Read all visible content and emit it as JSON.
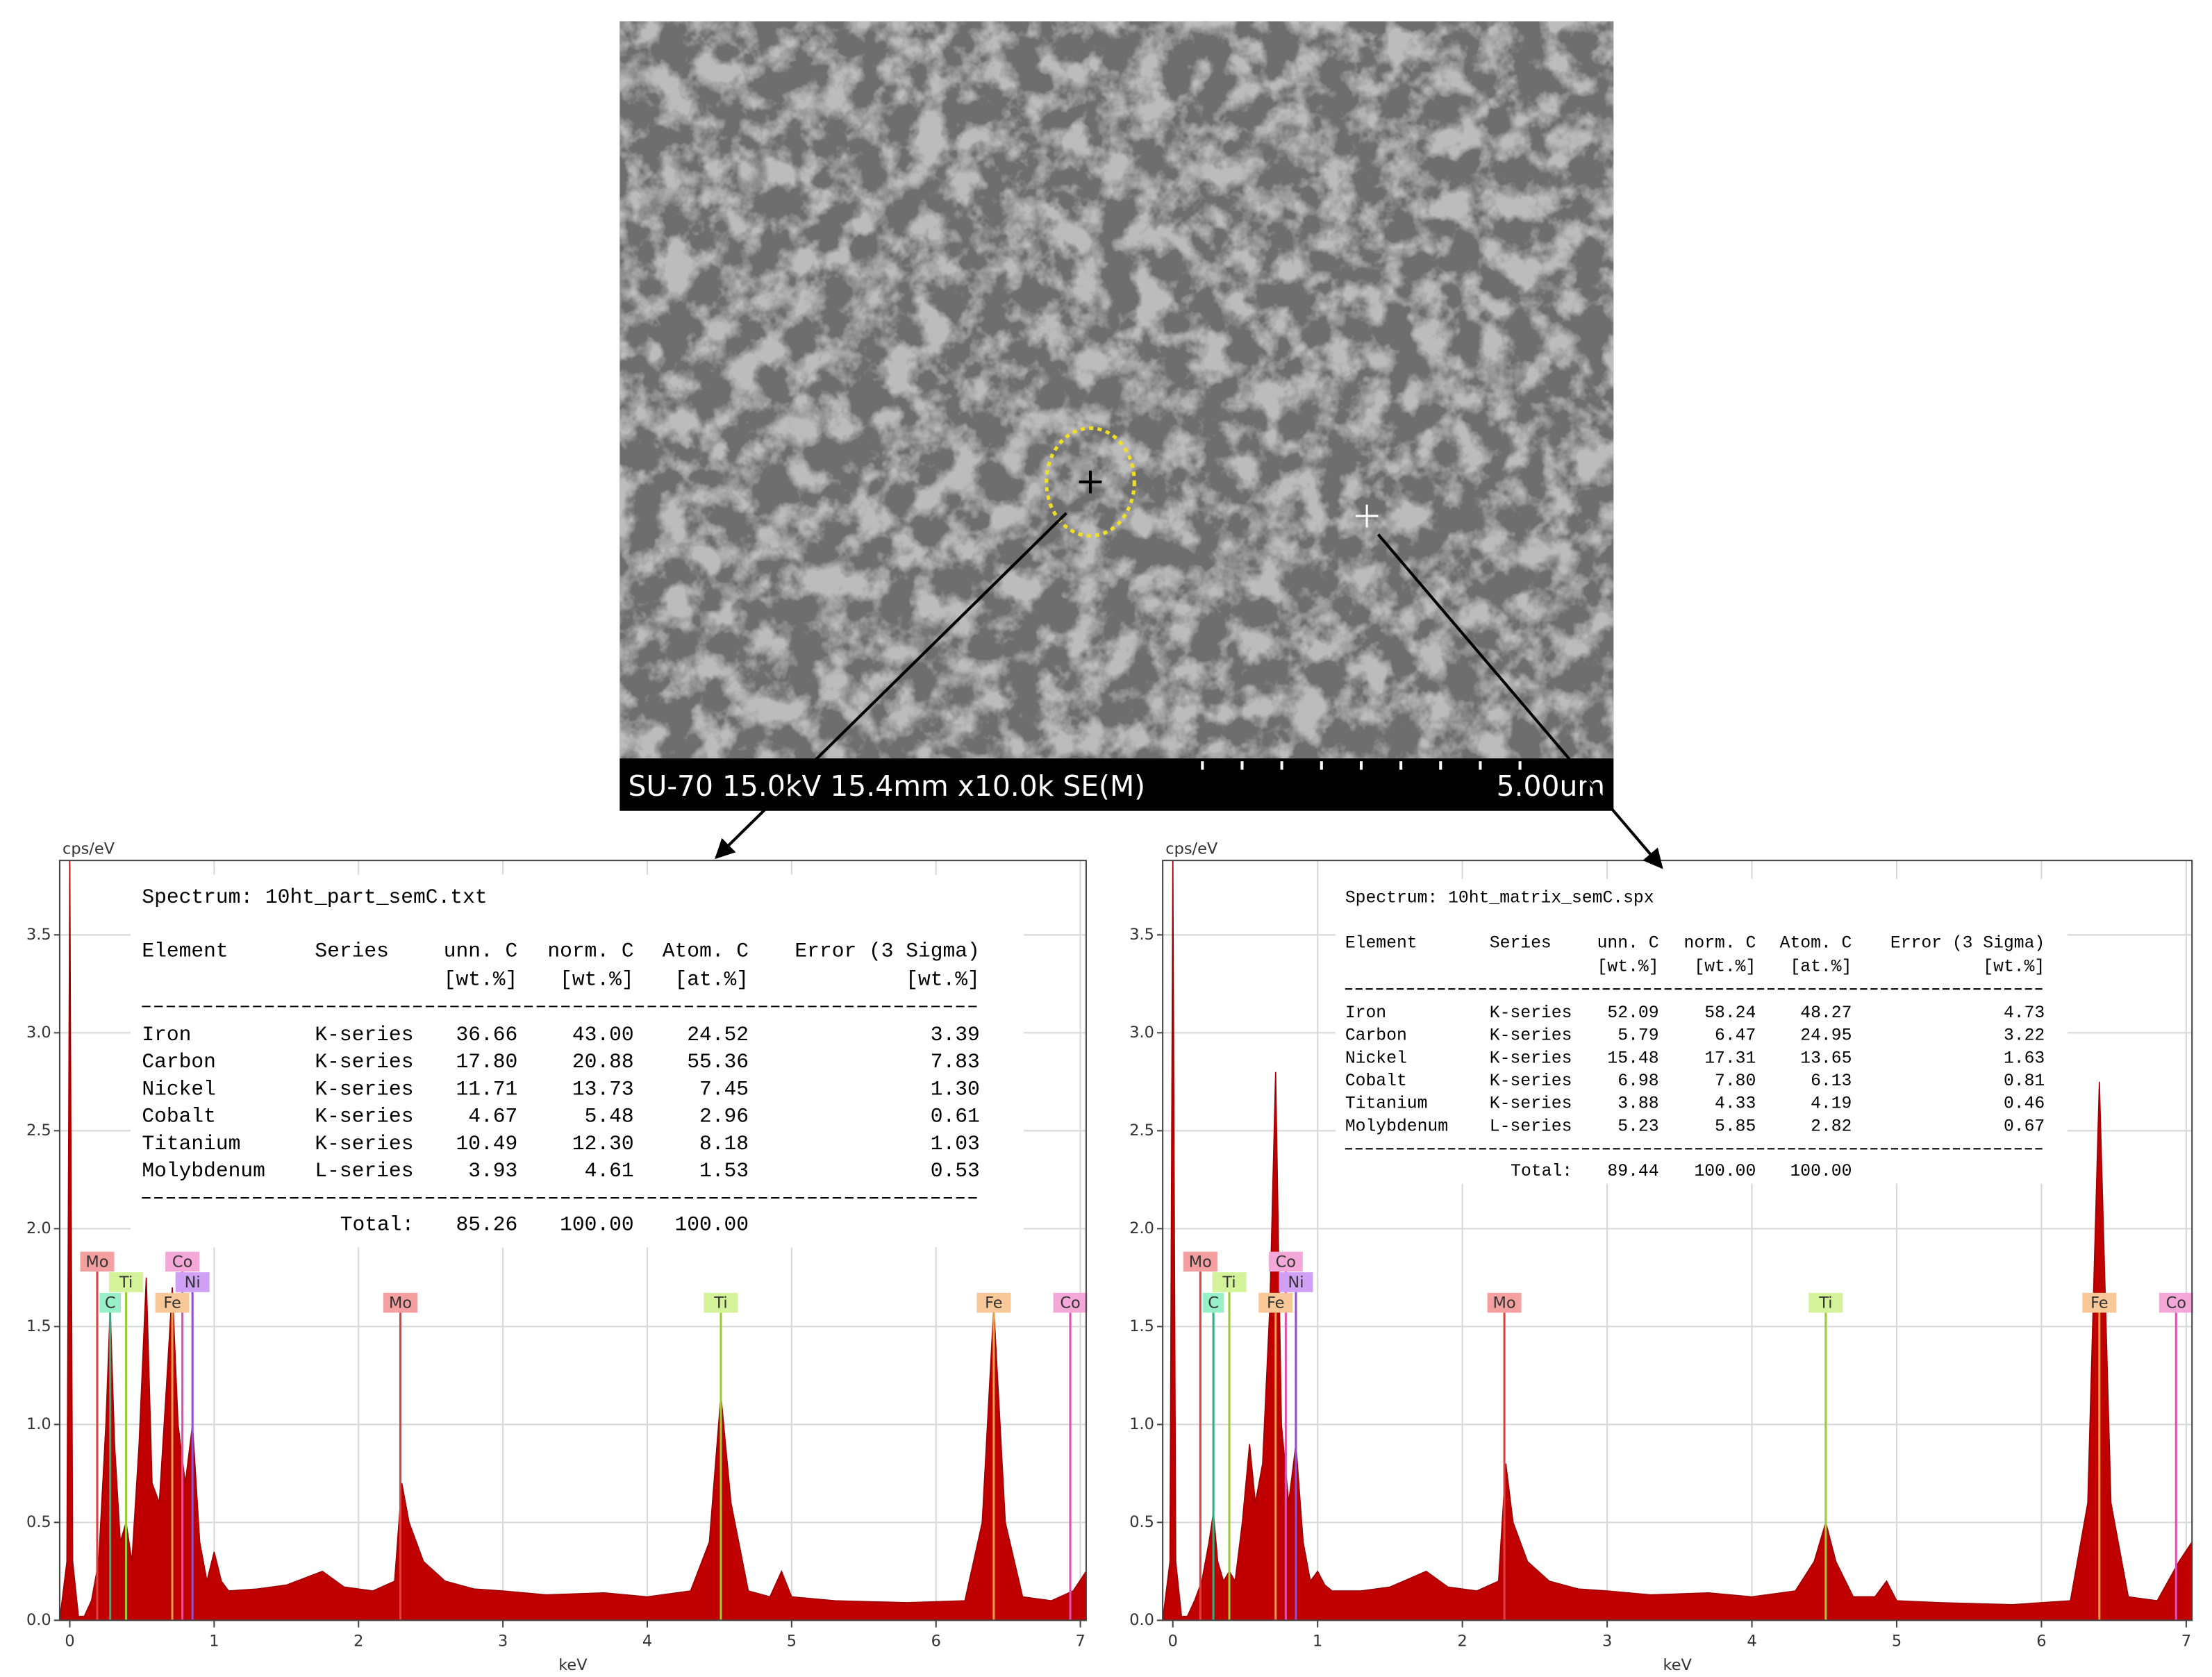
{
  "image": {
    "caption": "SU-70 15.0kV 15.4mm x10.0k SE(M)",
    "scale_bar": "5.00um"
  },
  "chart_data": [
    {
      "type": "area",
      "ylabel": "cps/eV",
      "xlabel": "keV",
      "color": "#c00000",
      "xlim": [
        -0.07,
        7.04
      ],
      "ylim": [
        0,
        3.88
      ],
      "xticks": [
        0,
        1,
        2,
        3,
        4,
        5,
        6,
        7
      ],
      "yticks": [
        {
          "value": 0,
          "label": "0.0"
        },
        0.5,
        {
          "value": 1,
          "label": "1.0"
        },
        1.5,
        {
          "value": 2,
          "label": "2.0"
        },
        2.5,
        {
          "value": 3,
          "label": "3.0"
        },
        3.5
      ],
      "grid": true,
      "x": [
        -0.07,
        -0.02,
        0,
        0.02,
        0.06,
        0.1,
        0.15,
        0.2,
        0.25,
        0.28,
        0.31,
        0.35,
        0.39,
        0.43,
        0.48,
        0.53,
        0.57,
        0.62,
        0.67,
        0.71,
        0.75,
        0.8,
        0.85,
        0.9,
        0.95,
        1.0,
        1.05,
        1.1,
        1.3,
        1.5,
        1.75,
        1.9,
        2.1,
        2.25,
        2.3,
        2.35,
        2.45,
        2.6,
        2.8,
        3.0,
        3.3,
        3.7,
        4.0,
        4.3,
        4.43,
        4.51,
        4.58,
        4.7,
        4.85,
        4.93,
        5.0,
        5.3,
        5.8,
        6.2,
        6.32,
        6.4,
        6.48,
        6.6,
        6.8,
        6.95,
        7.04
      ],
      "values": [
        0,
        0.3,
        3.88,
        0.3,
        0.02,
        0.02,
        0.1,
        0.3,
        1.0,
        1.6,
        0.9,
        0.4,
        0.5,
        0.3,
        0.9,
        1.75,
        0.7,
        0.6,
        1.2,
        1.7,
        1.0,
        0.7,
        1.0,
        0.4,
        0.2,
        0.35,
        0.2,
        0.15,
        0.16,
        0.18,
        0.25,
        0.17,
        0.15,
        0.2,
        0.7,
        0.5,
        0.3,
        0.2,
        0.16,
        0.15,
        0.13,
        0.14,
        0.12,
        0.15,
        0.4,
        1.15,
        0.6,
        0.15,
        0.12,
        0.25,
        0.12,
        0.1,
        0.09,
        0.1,
        0.5,
        1.6,
        0.5,
        0.12,
        0.1,
        0.15,
        0.25
      ],
      "markers": [
        {
          "label": "Mo",
          "x": 0.19,
          "color": "#e04040",
          "bg": "#f4a0a0"
        },
        {
          "label": "Ti",
          "x": 0.39,
          "color": "#9acd32",
          "bg": "#d4f29a"
        },
        {
          "label": "C",
          "x": 0.28,
          "color": "#30b080",
          "bg": "#98f0c8"
        },
        {
          "label": "Co",
          "x": 0.78,
          "color": "#e050b0",
          "bg": "#f4a8d8"
        },
        {
          "label": "Ni",
          "x": 0.85,
          "color": "#9050d0",
          "bg": "#cfa0f4"
        },
        {
          "label": "Fe",
          "x": 0.71,
          "color": "#e8a040",
          "bg": "#f8c898"
        },
        {
          "label": "Mo",
          "x": 2.29,
          "color": "#e04040",
          "bg": "#f4a0a0"
        },
        {
          "label": "Ti",
          "x": 4.51,
          "color": "#9acd32",
          "bg": "#d4f29a"
        },
        {
          "label": "Fe",
          "x": 6.4,
          "color": "#e8a040",
          "bg": "#f8c898"
        },
        {
          "label": "Co",
          "x": 6.93,
          "color": "#e050b0",
          "bg": "#f4a8d8"
        }
      ],
      "table": {
        "title": "Spectrum: 10ht_part_semC.txt",
        "header": [
          "Element",
          "Series",
          "unn. C",
          "norm. C",
          "Atom. C",
          "Error (3 Sigma)"
        ],
        "units": [
          "[wt.%]",
          "[wt.%]",
          "[at.%]",
          "[wt.%]"
        ],
        "rows": [
          [
            "Iron",
            "K-series",
            "36.66",
            "43.00",
            "24.52",
            "3.39"
          ],
          [
            "Carbon",
            "K-series",
            "17.80",
            "20.88",
            "55.36",
            "7.83"
          ],
          [
            "Nickel",
            "K-series",
            "11.71",
            "13.73",
            "7.45",
            "1.30"
          ],
          [
            "Cobalt",
            "K-series",
            "4.67",
            "5.48",
            "2.96",
            "0.61"
          ],
          [
            "Titanium",
            "K-series",
            "10.49",
            "12.30",
            "8.18",
            "1.03"
          ],
          [
            "Molybdenum",
            "L-series",
            "3.93",
            "4.61",
            "1.53",
            "0.53"
          ]
        ],
        "total": {
          "label": "Total:",
          "values": [
            "85.26",
            "100.00",
            "100.00"
          ]
        }
      }
    },
    {
      "type": "area",
      "ylabel": "cps/eV",
      "xlabel": "keV",
      "color": "#c00000",
      "xlim": [
        -0.07,
        7.04
      ],
      "ylim": [
        0,
        3.88
      ],
      "xticks": [
        0,
        1,
        2,
        3,
        4,
        5,
        6,
        7
      ],
      "yticks": [
        {
          "value": 0,
          "label": "0.0"
        },
        0.5,
        {
          "value": 1,
          "label": "1.0"
        },
        1.5,
        {
          "value": 2,
          "label": "2.0"
        },
        2.5,
        {
          "value": 3,
          "label": "3.0"
        },
        3.5
      ],
      "grid": true,
      "x": [
        -0.07,
        -0.02,
        0,
        0.02,
        0.06,
        0.1,
        0.15,
        0.2,
        0.25,
        0.28,
        0.31,
        0.35,
        0.39,
        0.43,
        0.48,
        0.53,
        0.57,
        0.62,
        0.67,
        0.71,
        0.75,
        0.8,
        0.85,
        0.9,
        0.95,
        1.0,
        1.05,
        1.1,
        1.3,
        1.5,
        1.75,
        1.9,
        2.1,
        2.25,
        2.3,
        2.35,
        2.45,
        2.6,
        2.8,
        3.0,
        3.3,
        3.7,
        4.0,
        4.3,
        4.43,
        4.51,
        4.58,
        4.7,
        4.85,
        4.93,
        5.0,
        5.3,
        5.8,
        6.2,
        6.32,
        6.4,
        6.48,
        6.6,
        6.8,
        6.95,
        7.04
      ],
      "values": [
        0,
        0.3,
        3.88,
        0.3,
        0.02,
        0.02,
        0.1,
        0.2,
        0.4,
        0.55,
        0.3,
        0.2,
        0.25,
        0.2,
        0.5,
        0.9,
        0.6,
        0.8,
        1.6,
        2.8,
        1.0,
        0.6,
        0.9,
        0.4,
        0.2,
        0.25,
        0.18,
        0.15,
        0.15,
        0.17,
        0.25,
        0.17,
        0.15,
        0.2,
        0.8,
        0.5,
        0.3,
        0.2,
        0.16,
        0.15,
        0.13,
        0.14,
        0.12,
        0.15,
        0.3,
        0.5,
        0.3,
        0.12,
        0.12,
        0.2,
        0.1,
        0.09,
        0.08,
        0.1,
        0.6,
        2.75,
        0.6,
        0.12,
        0.1,
        0.3,
        0.4
      ],
      "markers": [
        {
          "label": "Mo",
          "x": 0.19,
          "color": "#e04040",
          "bg": "#f4a0a0"
        },
        {
          "label": "Ti",
          "x": 0.39,
          "color": "#9acd32",
          "bg": "#d4f29a"
        },
        {
          "label": "C",
          "x": 0.28,
          "color": "#30b080",
          "bg": "#98f0c8"
        },
        {
          "label": "Co",
          "x": 0.78,
          "color": "#e050b0",
          "bg": "#f4a8d8"
        },
        {
          "label": "Ni",
          "x": 0.85,
          "color": "#9050d0",
          "bg": "#cfa0f4"
        },
        {
          "label": "Fe",
          "x": 0.71,
          "color": "#e8a040",
          "bg": "#f8c898"
        },
        {
          "label": "Mo",
          "x": 2.29,
          "color": "#e04040",
          "bg": "#f4a0a0"
        },
        {
          "label": "Ti",
          "x": 4.51,
          "color": "#9acd32",
          "bg": "#d4f29a"
        },
        {
          "label": "Fe",
          "x": 6.4,
          "color": "#e8a040",
          "bg": "#f8c898"
        },
        {
          "label": "Co",
          "x": 6.93,
          "color": "#e050b0",
          "bg": "#f4a8d8"
        }
      ],
      "table": {
        "title": "Spectrum: 10ht_matrix_semC.spx",
        "header": [
          "Element",
          "Series",
          "unn. C",
          "norm. C",
          "Atom. C",
          "Error (3 Sigma)"
        ],
        "units": [
          "[wt.%]",
          "[wt.%]",
          "[at.%]",
          "[wt.%]"
        ],
        "rows": [
          [
            "Iron",
            "K-series",
            "52.09",
            "58.24",
            "48.27",
            "4.73"
          ],
          [
            "Carbon",
            "K-series",
            "5.79",
            "6.47",
            "24.95",
            "3.22"
          ],
          [
            "Nickel",
            "K-series",
            "15.48",
            "17.31",
            "13.65",
            "1.63"
          ],
          [
            "Cobalt",
            "K-series",
            "6.98",
            "7.80",
            "6.13",
            "0.81"
          ],
          [
            "Titanium",
            "K-series",
            "3.88",
            "4.33",
            "4.19",
            "0.46"
          ],
          [
            "Molybdenum",
            "L-series",
            "5.23",
            "5.85",
            "2.82",
            "0.67"
          ]
        ],
        "total": {
          "label": "Total:",
          "values": [
            "89.44",
            "100.00",
            "100.00"
          ]
        }
      }
    }
  ]
}
